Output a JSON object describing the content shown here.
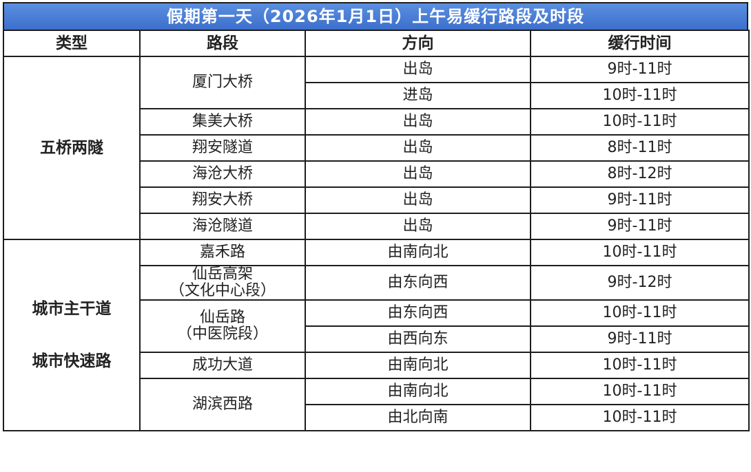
{
  "title": "假期第一天（2026年1月1日）上午易缓行路段及时段",
  "headers": [
    "类型",
    "路段",
    "方向",
    "缓行时间"
  ],
  "groups": [
    {
      "type_lines": [
        "五桥两隧"
      ],
      "segments": [
        {
          "name_lines": [
            "厦门大桥"
          ],
          "entries": [
            {
              "direction": "出岛",
              "time": "9时-11时"
            },
            {
              "direction": "进岛",
              "time": "10时-11时"
            }
          ]
        },
        {
          "name_lines": [
            "集美大桥"
          ],
          "entries": [
            {
              "direction": "出岛",
              "time": "10时-11时"
            }
          ]
        },
        {
          "name_lines": [
            "翔安隧道"
          ],
          "entries": [
            {
              "direction": "出岛",
              "time": "8时-11时"
            }
          ]
        },
        {
          "name_lines": [
            "海沧大桥"
          ],
          "entries": [
            {
              "direction": "出岛",
              "time": "8时-12时"
            }
          ]
        },
        {
          "name_lines": [
            "翔安大桥"
          ],
          "entries": [
            {
              "direction": "出岛",
              "time": "9时-11时"
            }
          ]
        },
        {
          "name_lines": [
            "海沧隧道"
          ],
          "entries": [
            {
              "direction": "出岛",
              "time": "9时-11时"
            }
          ]
        }
      ]
    },
    {
      "type_lines": [
        "城市主干道",
        "城市快速路"
      ],
      "segments": [
        {
          "name_lines": [
            "嘉禾路"
          ],
          "entries": [
            {
              "direction": "由南向北",
              "time": "10时-11时"
            }
          ]
        },
        {
          "name_lines": [
            "仙岳高架",
            "（文化中心段）"
          ],
          "entries": [
            {
              "direction": "由东向西",
              "time": "9时-12时"
            }
          ]
        },
        {
          "name_lines": [
            "仙岳路",
            "（中医院段）"
          ],
          "entries": [
            {
              "direction": "由东向西",
              "time": "10时-11时"
            },
            {
              "direction": "由西向东",
              "time": "9时-11时"
            }
          ]
        },
        {
          "name_lines": [
            "成功大道"
          ],
          "entries": [
            {
              "direction": "由南向北",
              "time": "10时-11时"
            }
          ]
        },
        {
          "name_lines": [
            "湖滨西路"
          ],
          "entries": [
            {
              "direction": "由南向北",
              "time": "10时-11时"
            },
            {
              "direction": "由北向南",
              "time": "10时-11时"
            }
          ]
        }
      ]
    }
  ]
}
